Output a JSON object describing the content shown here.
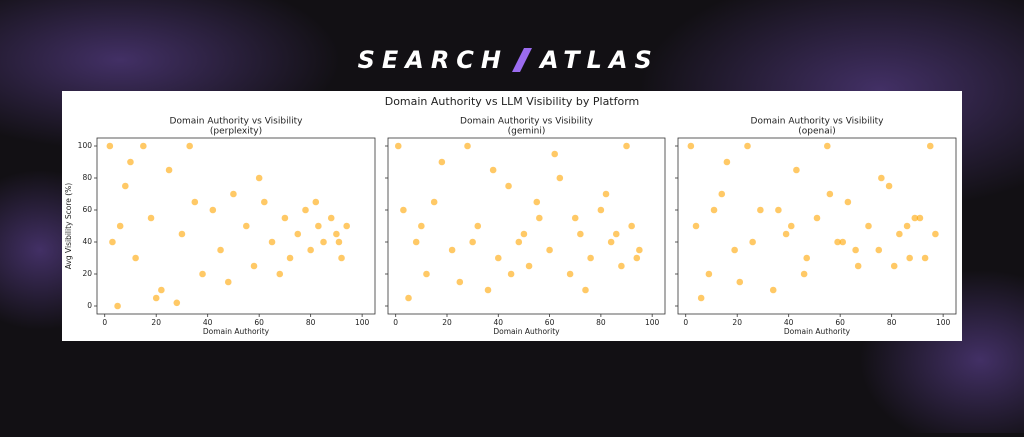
{
  "header": {
    "brand_left": "SEARCH",
    "brand_right": "ATLAS",
    "figure_title": "Domain Authority vs LLM Visibility by Platform"
  },
  "chart_data": [
    {
      "type": "scatter",
      "title": "Domain Authority vs Visibility",
      "subtitle": "(perplexity)",
      "xlabel": "Domain Authority",
      "ylabel": "Avg Visibility Score (%)",
      "color": "#ffa500",
      "xlim": [
        -3,
        105
      ],
      "ylim": [
        -5,
        105
      ],
      "xticks": [
        0,
        20,
        40,
        60,
        80,
        100
      ],
      "yticks": [
        0,
        20,
        40,
        60,
        80,
        100
      ],
      "x": [
        2,
        5,
        8,
        12,
        15,
        18,
        22,
        25,
        30,
        33,
        38,
        42,
        45,
        50,
        55,
        58,
        62,
        65,
        70,
        72,
        75,
        78,
        80,
        83,
        85,
        88,
        90,
        92,
        94,
        3,
        10,
        20,
        35,
        48,
        60,
        68,
        82,
        91,
        6,
        28
      ],
      "y": [
        100,
        0,
        75,
        30,
        100,
        55,
        10,
        85,
        45,
        100,
        20,
        60,
        35,
        70,
        50,
        25,
        65,
        40,
        55,
        30,
        45,
        60,
        35,
        50,
        40,
        55,
        45,
        30,
        50,
        40,
        90,
        5,
        65,
        15,
        80,
        20,
        65,
        40,
        50,
        2
      ]
    },
    {
      "type": "scatter",
      "title": "Domain Authority vs Visibility",
      "subtitle": "(gemini)",
      "xlabel": "Domain Authority",
      "color": "#ffa500",
      "xlim": [
        -3,
        105
      ],
      "ylim": [
        -5,
        105
      ],
      "xticks": [
        0,
        20,
        40,
        60,
        80,
        100
      ],
      "yticks": [
        0,
        20,
        40,
        60,
        80,
        100
      ],
      "x": [
        1,
        3,
        8,
        12,
        18,
        22,
        28,
        32,
        36,
        40,
        44,
        48,
        52,
        56,
        60,
        64,
        68,
        72,
        76,
        80,
        84,
        88,
        90,
        92,
        95,
        5,
        15,
        25,
        38,
        50,
        62,
        70,
        82,
        94,
        10,
        45,
        55,
        30,
        74,
        86
      ],
      "y": [
        100,
        60,
        40,
        20,
        90,
        35,
        100,
        50,
        10,
        30,
        75,
        40,
        25,
        55,
        35,
        80,
        20,
        45,
        30,
        60,
        40,
        25,
        100,
        50,
        35,
        5,
        65,
        15,
        85,
        45,
        95,
        55,
        70,
        30,
        50,
        20,
        65,
        40,
        10,
        45
      ]
    },
    {
      "type": "scatter",
      "title": "Domain Authority vs Visibility",
      "subtitle": "(openai)",
      "xlabel": "Domain Authority",
      "color": "#ffa500",
      "xlim": [
        -3,
        105
      ],
      "ylim": [
        -5,
        105
      ],
      "xticks": [
        0,
        20,
        40,
        60,
        80,
        100
      ],
      "yticks": [
        0,
        20,
        40,
        60,
        80,
        100
      ],
      "x": [
        2,
        4,
        9,
        14,
        19,
        24,
        29,
        34,
        39,
        43,
        47,
        51,
        55,
        59,
        63,
        67,
        71,
        75,
        79,
        83,
        87,
        91,
        95,
        97,
        6,
        16,
        26,
        36,
        46,
        56,
        66,
        76,
        86,
        93,
        11,
        21,
        41,
        61,
        81,
        89
      ],
      "y": [
        100,
        50,
        20,
        70,
        35,
        100,
        60,
        10,
        45,
        85,
        30,
        55,
        100,
        40,
        65,
        25,
        50,
        35,
        75,
        45,
        30,
        55,
        100,
        45,
        5,
        90,
        40,
        60,
        20,
        70,
        35,
        80,
        50,
        30,
        60,
        15,
        50,
        40,
        25,
        55
      ]
    }
  ]
}
